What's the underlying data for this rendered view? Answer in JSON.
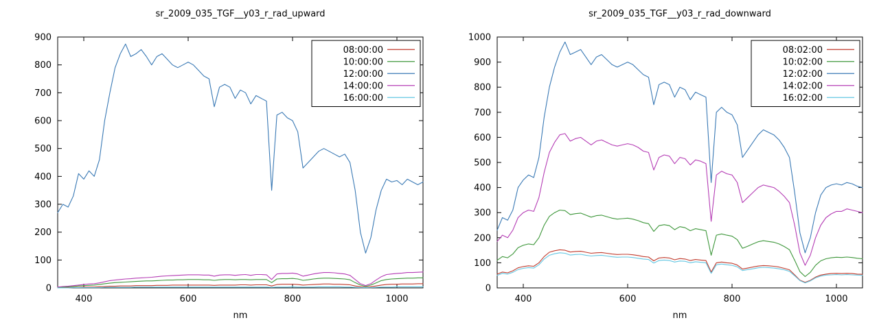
{
  "page": {
    "background": "#ffffff"
  },
  "chart_data": [
    {
      "type": "line",
      "title": "sr_2009_035_TGF__y03_r_rad_upward",
      "xlabel": "nm",
      "ylabel": "",
      "xlim": [
        350,
        1050
      ],
      "ylim": [
        0,
        900
      ],
      "xticks": [
        400,
        600,
        800,
        1000
      ],
      "ytick_step": 100,
      "grid": false,
      "legend_position": "top-right",
      "x": [
        350,
        360,
        370,
        380,
        390,
        400,
        410,
        420,
        430,
        440,
        450,
        460,
        470,
        480,
        490,
        500,
        510,
        520,
        530,
        540,
        550,
        560,
        570,
        580,
        590,
        600,
        610,
        620,
        630,
        640,
        650,
        660,
        670,
        680,
        690,
        700,
        710,
        720,
        730,
        740,
        750,
        760,
        770,
        780,
        790,
        800,
        810,
        820,
        830,
        840,
        850,
        860,
        870,
        880,
        890,
        900,
        910,
        920,
        930,
        940,
        950,
        960,
        970,
        980,
        990,
        1000,
        1010,
        1020,
        1030,
        1040,
        1050
      ],
      "series": [
        {
          "name": "08:00:00",
          "color": "#c0392b",
          "values": [
            1,
            1,
            1,
            2,
            2,
            3,
            3,
            3,
            4,
            5,
            6,
            6,
            7,
            7,
            7,
            8,
            8,
            8,
            8,
            9,
            9,
            9,
            10,
            10,
            10,
            10,
            10,
            10,
            10,
            10,
            9,
            10,
            10,
            10,
            10,
            11,
            11,
            10,
            11,
            11,
            11,
            7,
            12,
            13,
            13,
            13,
            12,
            10,
            11,
            12,
            13,
            14,
            14,
            13,
            13,
            12,
            11,
            7,
            4,
            2,
            4,
            7,
            10,
            12,
            13,
            13,
            14,
            14,
            14,
            15,
            15
          ]
        },
        {
          "name": "10:00:00",
          "color": "#3c9639",
          "values": [
            2,
            3,
            4,
            5,
            7,
            8,
            9,
            10,
            12,
            15,
            17,
            19,
            20,
            21,
            22,
            23,
            24,
            25,
            25,
            26,
            27,
            28,
            28,
            29,
            29,
            30,
            30,
            30,
            29,
            29,
            27,
            29,
            30,
            30,
            29,
            30,
            30,
            29,
            30,
            30,
            30,
            19,
            32,
            33,
            33,
            34,
            32,
            27,
            29,
            32,
            34,
            35,
            35,
            34,
            33,
            32,
            29,
            19,
            10,
            5,
            10,
            18,
            26,
            30,
            32,
            33,
            34,
            35,
            35,
            36,
            36
          ]
        },
        {
          "name": "12:00:00",
          "color": "#3878b4",
          "values": [
            270,
            300,
            290,
            330,
            410,
            390,
            420,
            400,
            460,
            600,
            700,
            790,
            840,
            875,
            830,
            840,
            855,
            830,
            800,
            830,
            840,
            820,
            800,
            790,
            800,
            810,
            800,
            780,
            760,
            750,
            650,
            720,
            730,
            720,
            680,
            710,
            700,
            660,
            690,
            680,
            670,
            350,
            620,
            630,
            610,
            600,
            560,
            430,
            450,
            470,
            490,
            500,
            490,
            480,
            470,
            480,
            450,
            350,
            200,
            125,
            180,
            280,
            350,
            390,
            380,
            385,
            370,
            390,
            380,
            370,
            380
          ]
        },
        {
          "name": "14:00:00",
          "color": "#b43bb4",
          "values": [
            3,
            5,
            6,
            8,
            10,
            12,
            14,
            15,
            18,
            22,
            26,
            28,
            30,
            32,
            33,
            35,
            36,
            37,
            38,
            40,
            42,
            43,
            44,
            45,
            46,
            47,
            47,
            47,
            46,
            46,
            42,
            46,
            47,
            47,
            45,
            47,
            48,
            45,
            48,
            48,
            47,
            30,
            50,
            52,
            52,
            53,
            50,
            42,
            46,
            50,
            53,
            55,
            55,
            54,
            52,
            50,
            45,
            30,
            15,
            8,
            15,
            28,
            40,
            48,
            50,
            52,
            53,
            55,
            55,
            56,
            57
          ]
        },
        {
          "name": "16:00:00",
          "color": "#62c6e2",
          "values": [
            0,
            0,
            0,
            1,
            1,
            1,
            1,
            1,
            1,
            2,
            2,
            2,
            2,
            2,
            2,
            3,
            3,
            3,
            3,
            3,
            3,
            3,
            3,
            3,
            3,
            3,
            3,
            3,
            3,
            3,
            3,
            3,
            3,
            3,
            3,
            3,
            3,
            3,
            3,
            3,
            3,
            2,
            3,
            3,
            3,
            4,
            3,
            3,
            3,
            3,
            4,
            4,
            4,
            4,
            4,
            3,
            3,
            2,
            1,
            1,
            1,
            2,
            3,
            3,
            3,
            4,
            4,
            4,
            4,
            4,
            4
          ]
        }
      ]
    },
    {
      "type": "line",
      "title": "sr_2009_035_TGF__y03_r_rad_downward",
      "xlabel": "nm",
      "ylabel": "",
      "xlim": [
        350,
        1050
      ],
      "ylim": [
        0,
        1000
      ],
      "xticks": [
        400,
        600,
        800,
        1000
      ],
      "ytick_step": 100,
      "grid": false,
      "legend_position": "top-right",
      "x": [
        350,
        360,
        370,
        380,
        390,
        400,
        410,
        420,
        430,
        440,
        450,
        460,
        470,
        480,
        490,
        500,
        510,
        520,
        530,
        540,
        550,
        560,
        570,
        580,
        590,
        600,
        610,
        620,
        630,
        640,
        650,
        660,
        670,
        680,
        690,
        700,
        710,
        720,
        730,
        740,
        750,
        760,
        770,
        780,
        790,
        800,
        810,
        820,
        830,
        840,
        850,
        860,
        870,
        880,
        890,
        900,
        910,
        920,
        930,
        940,
        950,
        960,
        970,
        980,
        990,
        1000,
        1010,
        1020,
        1030,
        1040,
        1050
      ],
      "series": [
        {
          "name": "08:02:00",
          "color": "#c0392b",
          "values": [
            55,
            63,
            60,
            68,
            80,
            85,
            88,
            86,
            100,
            125,
            142,
            148,
            152,
            150,
            143,
            145,
            146,
            142,
            138,
            140,
            141,
            138,
            135,
            133,
            134,
            134,
            132,
            129,
            125,
            123,
            108,
            119,
            121,
            119,
            112,
            117,
            115,
            109,
            113,
            111,
            109,
            63,
            100,
            103,
            100,
            98,
            91,
            75,
            79,
            83,
            87,
            89,
            88,
            86,
            83,
            78,
            72,
            52,
            31,
            22,
            30,
            43,
            51,
            55,
            57,
            58,
            57,
            58,
            57,
            55,
            54
          ]
        },
        {
          "name": "10:02:00",
          "color": "#3c9639",
          "values": [
            110,
            125,
            120,
            135,
            160,
            170,
            175,
            172,
            200,
            250,
            285,
            300,
            310,
            308,
            292,
            296,
            298,
            290,
            282,
            288,
            290,
            284,
            278,
            274,
            276,
            278,
            274,
            268,
            260,
            256,
            225,
            248,
            252,
            248,
            232,
            244,
            240,
            228,
            236,
            232,
            228,
            130,
            210,
            215,
            210,
            206,
            192,
            158,
            166,
            175,
            184,
            188,
            185,
            182,
            175,
            165,
            152,
            110,
            65,
            45,
            62,
            90,
            108,
            116,
            120,
            122,
            121,
            123,
            121,
            118,
            116
          ]
        },
        {
          "name": "12:02:00",
          "color": "#3878b4",
          "values": [
            230,
            280,
            270,
            310,
            400,
            430,
            450,
            440,
            520,
            680,
            800,
            880,
            940,
            980,
            930,
            940,
            950,
            920,
            890,
            920,
            930,
            910,
            890,
            880,
            890,
            900,
            890,
            870,
            850,
            840,
            730,
            810,
            820,
            810,
            760,
            800,
            790,
            750,
            780,
            770,
            760,
            420,
            700,
            720,
            700,
            690,
            650,
            520,
            550,
            580,
            610,
            630,
            620,
            610,
            590,
            560,
            520,
            380,
            220,
            140,
            200,
            300,
            370,
            400,
            410,
            415,
            410,
            420,
            415,
            405,
            400
          ]
        },
        {
          "name": "14:02:00",
          "color": "#b43bb4",
          "values": [
            185,
            210,
            200,
            230,
            280,
            300,
            310,
            305,
            360,
            460,
            540,
            580,
            610,
            615,
            585,
            595,
            600,
            585,
            570,
            585,
            590,
            580,
            570,
            565,
            570,
            575,
            570,
            560,
            545,
            540,
            470,
            520,
            530,
            525,
            495,
            520,
            515,
            490,
            510,
            505,
            495,
            265,
            450,
            465,
            455,
            450,
            420,
            340,
            360,
            380,
            400,
            410,
            405,
            400,
            385,
            365,
            340,
            250,
            140,
            90,
            130,
            200,
            250,
            280,
            295,
            305,
            305,
            315,
            310,
            305,
            300
          ]
        },
        {
          "name": "16:02:00",
          "color": "#62c6e2",
          "values": [
            50,
            58,
            55,
            62,
            73,
            78,
            81,
            79,
            92,
            115,
            130,
            136,
            140,
            138,
            131,
            133,
            134,
            130,
            127,
            129,
            130,
            127,
            124,
            122,
            123,
            123,
            121,
            118,
            115,
            113,
            99,
            109,
            111,
            109,
            103,
            107,
            106,
            100,
            104,
            102,
            100,
            58,
            92,
            95,
            92,
            90,
            84,
            69,
            73,
            76,
            80,
            82,
            81,
            79,
            76,
            72,
            66,
            48,
            29,
            20,
            28,
            40,
            47,
            51,
            52,
            53,
            52,
            53,
            52,
            51,
            50
          ]
        }
      ]
    }
  ]
}
